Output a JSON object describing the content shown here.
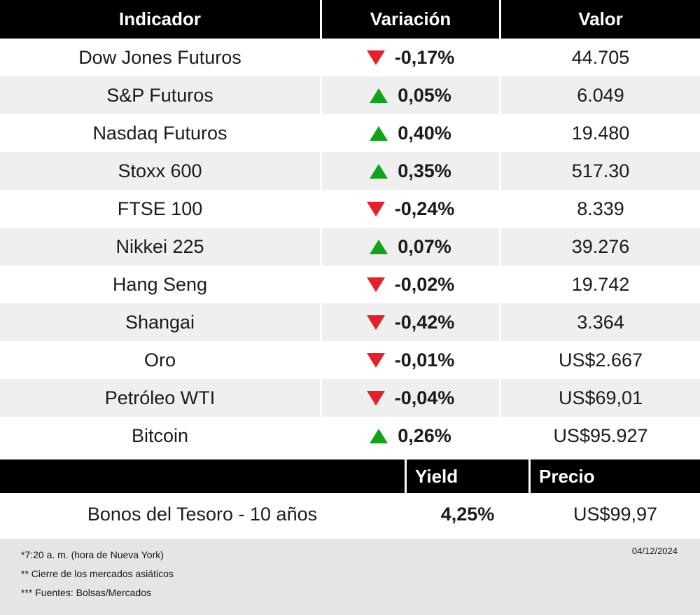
{
  "colors": {
    "up": "#12a31b",
    "down": "#e6202a",
    "header": "#000000",
    "rowalt": "#efefef",
    "footer": "#e5e5e5"
  },
  "chart_data": [
    {
      "type": "table",
      "columns": [
        "Indicador",
        "Variación",
        "Valor"
      ],
      "rows": [
        {
          "indicador": "Dow Jones Futuros",
          "direction": "down",
          "variacion": "-0,17%",
          "valor": "44.705"
        },
        {
          "indicador": "S&P Futuros",
          "direction": "up",
          "variacion": "0,05%",
          "valor": "6.049"
        },
        {
          "indicador": "Nasdaq Futuros",
          "direction": "up",
          "variacion": "0,40%",
          "valor": "19.480"
        },
        {
          "indicador": "Stoxx 600",
          "direction": "up",
          "variacion": "0,35%",
          "valor": "517.30"
        },
        {
          "indicador": "FTSE 100",
          "direction": "down",
          "variacion": "-0,24%",
          "valor": "8.339"
        },
        {
          "indicador": "Nikkei 225",
          "direction": "up",
          "variacion": "0,07%",
          "valor": "39.276"
        },
        {
          "indicador": "Hang Seng",
          "direction": "down",
          "variacion": "-0,02%",
          "valor": "19.742"
        },
        {
          "indicador": "Shangai",
          "direction": "down",
          "variacion": "-0,42%",
          "valor": "3.364"
        },
        {
          "indicador": "Oro",
          "direction": "down",
          "variacion": "-0,01%",
          "valor": "US$2.667"
        },
        {
          "indicador": "Petróleo WTI",
          "direction": "down",
          "variacion": "-0,04%",
          "valor": "US$69,01"
        },
        {
          "indicador": "Bitcoin",
          "direction": "up",
          "variacion": "0,26%",
          "valor": "US$95.927"
        }
      ]
    },
    {
      "type": "table",
      "columns": [
        "",
        "Yield",
        "Precio"
      ],
      "rows": [
        {
          "indicador": "Bonos del Tesoro - 10 años",
          "yield": "4,25%",
          "precio": "US$99,97"
        }
      ]
    }
  ],
  "footer": {
    "footnotes": [
      "*7:20 a. m. (hora de Nueva York)",
      "** Cierre de los mercados asiáticos",
      "*** Fuentes: Bolsas/Mercados"
    ],
    "date": "04/12/2024"
  }
}
